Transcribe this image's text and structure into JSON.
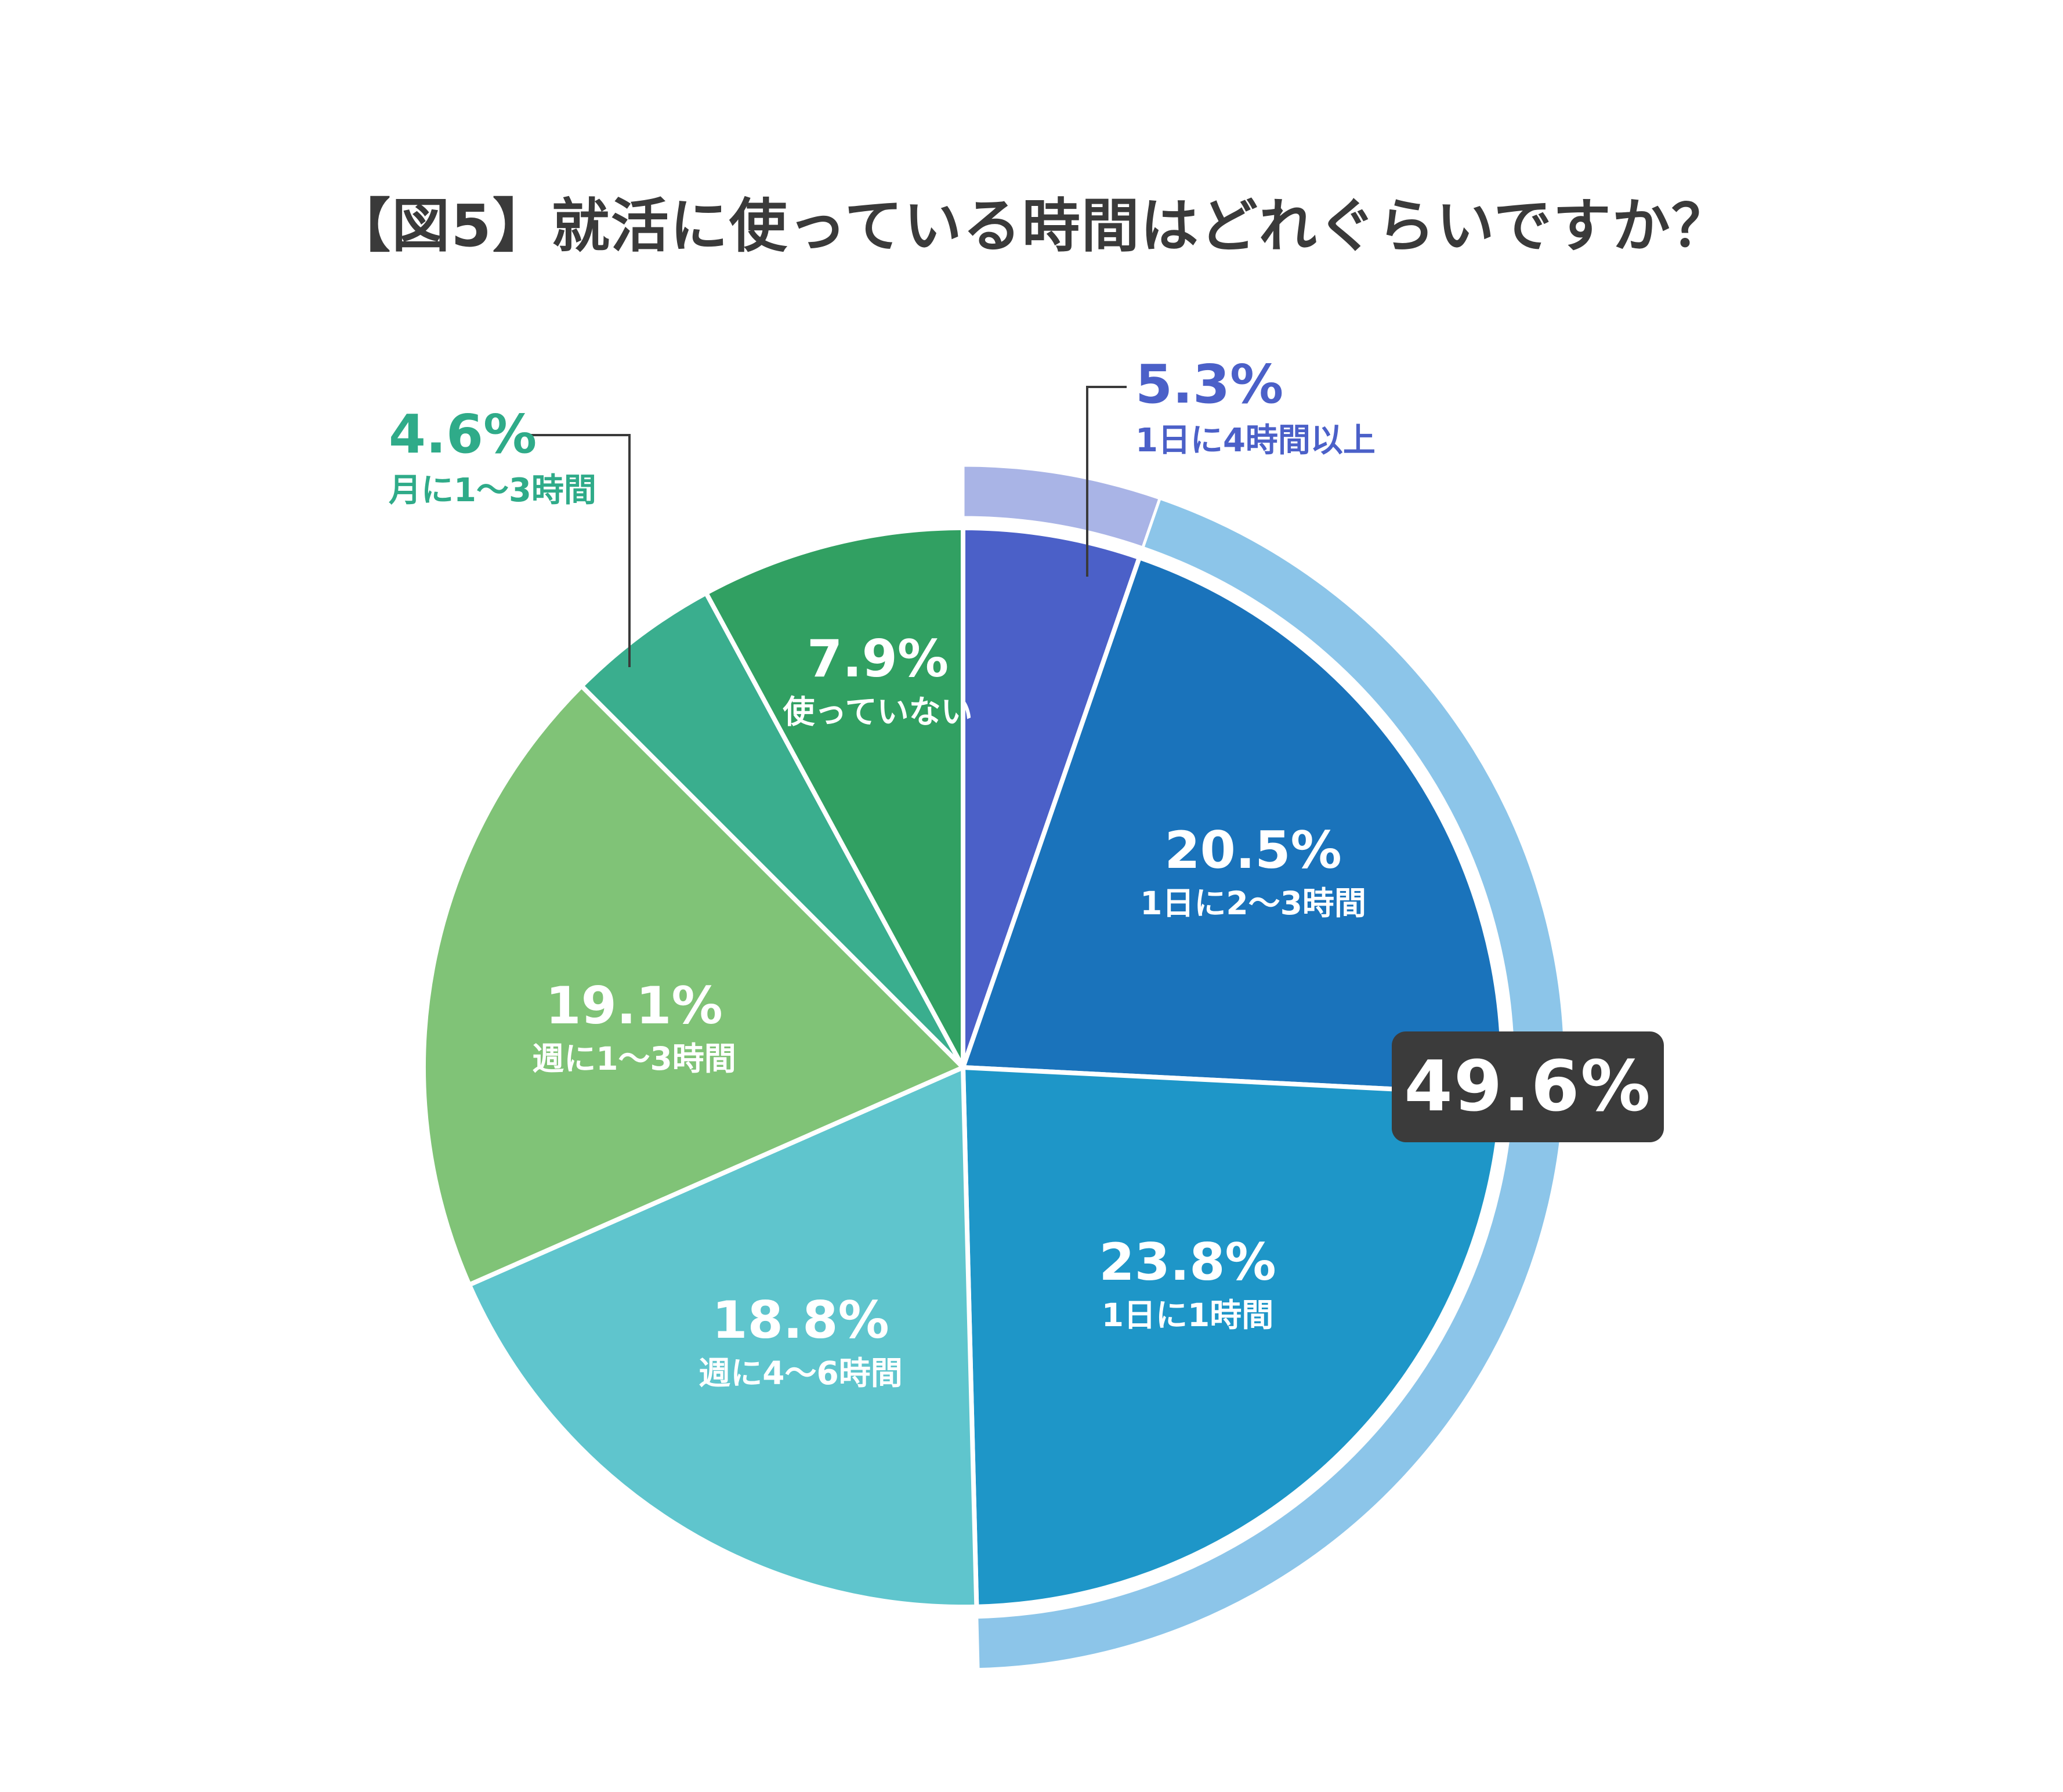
{
  "title": "【図5】就活に使っている時間はどれぐらいですか？",
  "chart_data": {
    "type": "pie",
    "title": "【図5】就活に使っている時間はどれぐらいですか？",
    "units": "%",
    "total": 100,
    "start_angle_deg": 0,
    "direction": "clockwise",
    "segments": [
      {
        "label": "1日に4時間以上",
        "pct": "5.3%",
        "value": 5.3,
        "color": "#4b60c8",
        "arc_color": "#a9b4e6",
        "highlighted": true,
        "label_placement": "outside",
        "label_color": "#4b60c8"
      },
      {
        "label": "1日に2〜3時間",
        "pct": "20.5%",
        "value": 20.5,
        "color": "#1a73bb",
        "arc_color": "#8cc5e9",
        "highlighted": true,
        "label_placement": "inside",
        "label_color": "#ffffff"
      },
      {
        "label": "1日に1時間",
        "pct": "23.8%",
        "value": 23.8,
        "color": "#1e96c8",
        "arc_color": "#8cc5e9",
        "highlighted": true,
        "label_placement": "inside",
        "label_color": "#ffffff"
      },
      {
        "label": "週に4〜6時間",
        "pct": "18.8%",
        "value": 18.8,
        "color": "#5fc5cd",
        "highlighted": false,
        "label_placement": "inside",
        "label_color": "#ffffff"
      },
      {
        "label": "週に1〜3時間",
        "pct": "19.1%",
        "value": 19.1,
        "color": "#80c377",
        "highlighted": false,
        "label_placement": "inside",
        "label_color": "#ffffff"
      },
      {
        "label": "月に1〜3時間",
        "pct": "4.6%",
        "value": 4.6,
        "color": "#3aae8e",
        "highlighted": false,
        "label_placement": "outside",
        "label_color": "#2fab89"
      },
      {
        "label": "使っていない",
        "pct": "7.9%",
        "value": 7.9,
        "color": "#31a062",
        "highlighted": false,
        "label_placement": "inside",
        "label_color": "#ffffff"
      }
    ],
    "highlight": {
      "pct": "49.6%",
      "value": 49.6,
      "covers": [
        "1日に4時間以上",
        "1日に2〜3時間",
        "1日に1時間"
      ],
      "badge_bg": "#3b3b3b",
      "badge_text_color": "#ffffff"
    },
    "legend": "none",
    "colors": {
      "title_text": "#3a3a3a",
      "callout_line": "#3a3a3a",
      "slice_divider": "#ffffff",
      "background": "#ffffff"
    }
  }
}
